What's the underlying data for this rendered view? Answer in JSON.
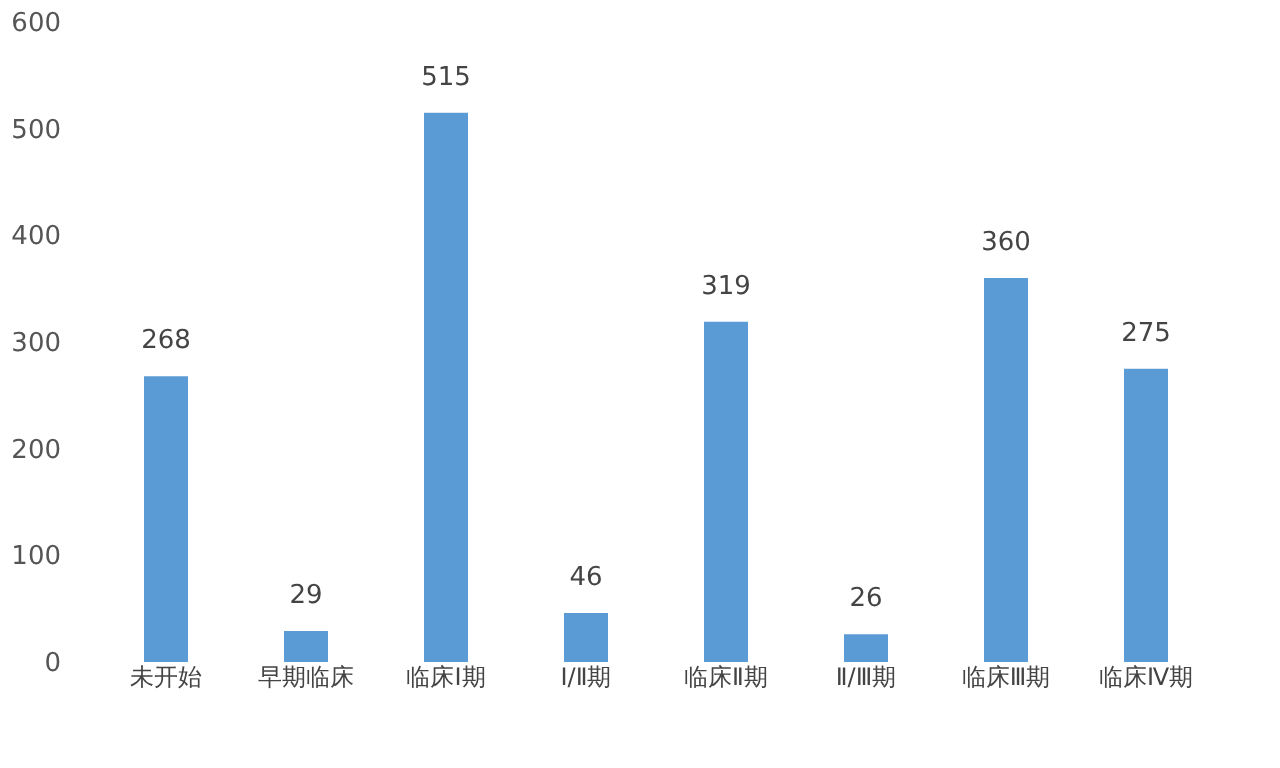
{
  "chart_data": {
    "type": "bar",
    "categories": [
      "未开始",
      "早期临床",
      "临床Ⅰ期",
      "Ⅰ/Ⅱ期",
      "临床Ⅱ期",
      "Ⅱ/Ⅲ期",
      "临床Ⅲ期",
      "临床Ⅳ期"
    ],
    "values": [
      268,
      29,
      515,
      46,
      319,
      26,
      360,
      275
    ],
    "color": "#5b9bd5",
    "ylim": [
      0,
      600
    ],
    "yticks": [
      0,
      100,
      200,
      300,
      400,
      500,
      600
    ],
    "data_labels": true,
    "grid": false
  }
}
